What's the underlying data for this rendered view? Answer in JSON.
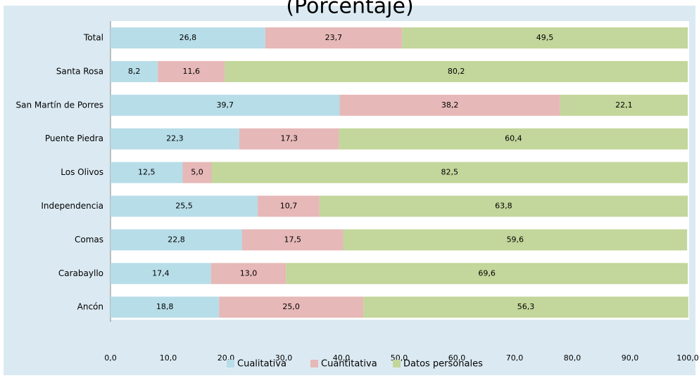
{
  "chart_data": {
    "type": "stacked_barh",
    "title": "(Porcentaje)",
    "categories": [
      "Total",
      "Santa Rosa",
      "San Martín de Porres",
      "Puente Piedra",
      "Los Olivos",
      "Independencia",
      "Comas",
      "Carabayllo",
      "Ancón"
    ],
    "series": [
      {
        "name": "Cualitativa",
        "color": "#b7dde8",
        "values": [
          26.8,
          8.2,
          39.7,
          22.3,
          12.5,
          25.5,
          22.8,
          17.4,
          18.8
        ],
        "value_labels": [
          "26,8",
          "8,2",
          "39,7",
          "22,3",
          "12,5",
          "25,5",
          "22,8",
          "17,4",
          "18,8"
        ]
      },
      {
        "name": "Cuantitativa",
        "color": "#e6b8b7",
        "values": [
          23.7,
          11.6,
          38.2,
          17.3,
          5.0,
          10.7,
          17.5,
          13.0,
          25.0
        ],
        "value_labels": [
          "23,7",
          "11,6",
          "38,2",
          "17,3",
          "5,0",
          "10,7",
          "17,5",
          "13,0",
          "25,0"
        ]
      },
      {
        "name": "Datos personales",
        "color": "#c3d69b",
        "values": [
          49.5,
          80.2,
          22.1,
          60.4,
          82.5,
          63.8,
          59.6,
          69.6,
          56.3
        ],
        "value_labels": [
          "49,5",
          "80,2",
          "22,1",
          "60,4",
          "82,5",
          "63,8",
          "59,6",
          "69,6",
          "56,3"
        ]
      }
    ],
    "xlim": [
      0,
      100
    ],
    "xticks": [
      {
        "value": 0,
        "label": "0,0"
      },
      {
        "value": 10,
        "label": "10,0"
      },
      {
        "value": 20,
        "label": "20,0"
      },
      {
        "value": 30,
        "label": "30,0"
      },
      {
        "value": 40,
        "label": "40,0"
      },
      {
        "value": 50,
        "label": "50,0"
      },
      {
        "value": 60,
        "label": "60,0"
      },
      {
        "value": 70,
        "label": "70,0"
      },
      {
        "value": 80,
        "label": "80,0"
      },
      {
        "value": 90,
        "label": "90,0"
      },
      {
        "value": 100,
        "label": "100,0"
      }
    ],
    "legend": "bottom"
  }
}
